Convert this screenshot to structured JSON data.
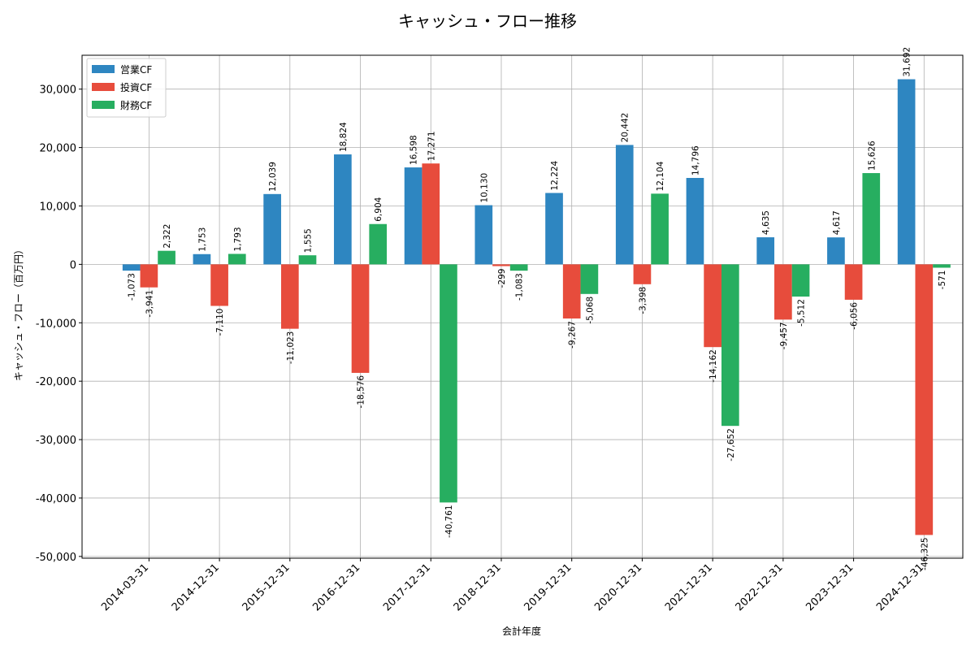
{
  "chart_data": {
    "type": "bar",
    "title": "キャッシュ・フロー推移",
    "xlabel": "会計年度",
    "ylabel": "キャッシュ・フロー（百万円）",
    "categories": [
      "2014-03-31",
      "2014-12-31",
      "2015-12-31",
      "2016-12-31",
      "2017-12-31",
      "2018-12-31",
      "2019-12-31",
      "2020-12-31",
      "2021-12-31",
      "2022-12-31",
      "2023-12-31",
      "2024-12-31"
    ],
    "series": [
      {
        "name": "営業CF",
        "color": "#2e86c1",
        "values": [
          -1073,
          1753,
          12039,
          18824,
          16598,
          10130,
          12224,
          20442,
          14796,
          4635,
          4617,
          31692
        ]
      },
      {
        "name": "投資CF",
        "color": "#e74c3c",
        "values": [
          -3941,
          -7110,
          -11023,
          -18576,
          17271,
          -299,
          -9267,
          -3398,
          -14162,
          -9457,
          -6056,
          -46325
        ]
      },
      {
        "name": "財務CF",
        "color": "#27ae60",
        "values": [
          2322,
          1793,
          1555,
          6904,
          -40761,
          -1083,
          -5068,
          12104,
          -27652,
          -5512,
          15626,
          -571
        ]
      }
    ],
    "ylim": [
      -50300,
      35800
    ],
    "yticks": [
      -50000,
      -40000,
      -30000,
      -20000,
      -10000,
      0,
      10000,
      20000,
      30000
    ],
    "ytick_labels": [
      "-50,000",
      "-40,000",
      "-30,000",
      "-20,000",
      "-10,000",
      "0",
      "10,000",
      "20,000",
      "30,000"
    ],
    "grid": true,
    "legend_position": "top-left"
  }
}
